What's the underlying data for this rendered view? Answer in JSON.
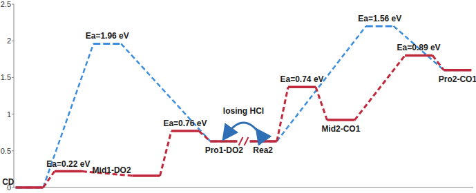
{
  "chart_data": {
    "type": "line",
    "xlim": [
      -0.4,
      11.4
    ],
    "xticks": [],
    "ylim": [
      0,
      2.5
    ],
    "yticks": [
      0,
      0.5,
      1,
      1.5,
      2,
      2.5
    ],
    "grid": false,
    "tick_labels": "y",
    "series": [
      {
        "color": "#3c8dde",
        "line_style": "dashed",
        "x": [
          0,
          2,
          5,
          6,
          9,
          11
        ],
        "values": [
          0,
          1.96,
          0.63,
          0.63,
          2.2,
          1.6
        ],
        "annotations": [
          null,
          "Ea=1.96 eV",
          null,
          null,
          "Ea=1.56 eV",
          null
        ]
      },
      {
        "color": "#c0283c",
        "line_style": "dashed",
        "x": [
          0,
          1,
          3,
          4,
          5,
          6,
          7,
          8,
          10,
          11
        ],
        "values": [
          0,
          0.22,
          0.16,
          0.77,
          0.63,
          0.63,
          1.37,
          0.92,
          1.8,
          1.6
        ],
        "annotations": [
          null,
          "Ea=0.22 eV",
          null,
          "Ea=0.76 eV",
          null,
          null,
          "Ea=0.74 eV",
          null,
          "Ea=0.89 eV",
          null
        ]
      }
    ],
    "state_labels": [
      {
        "x": 0,
        "text": "CD"
      },
      {
        "x": 3,
        "text": "Mid1-DO2"
      },
      {
        "x": 5,
        "text": "Pro1-DO2"
      },
      {
        "x": 6,
        "text": "Rea2"
      },
      {
        "x": 8,
        "text": "Mid2-CO1"
      },
      {
        "x": 11,
        "text": "Pro2-CO1"
      }
    ],
    "break_label": "losing HCl"
  }
}
